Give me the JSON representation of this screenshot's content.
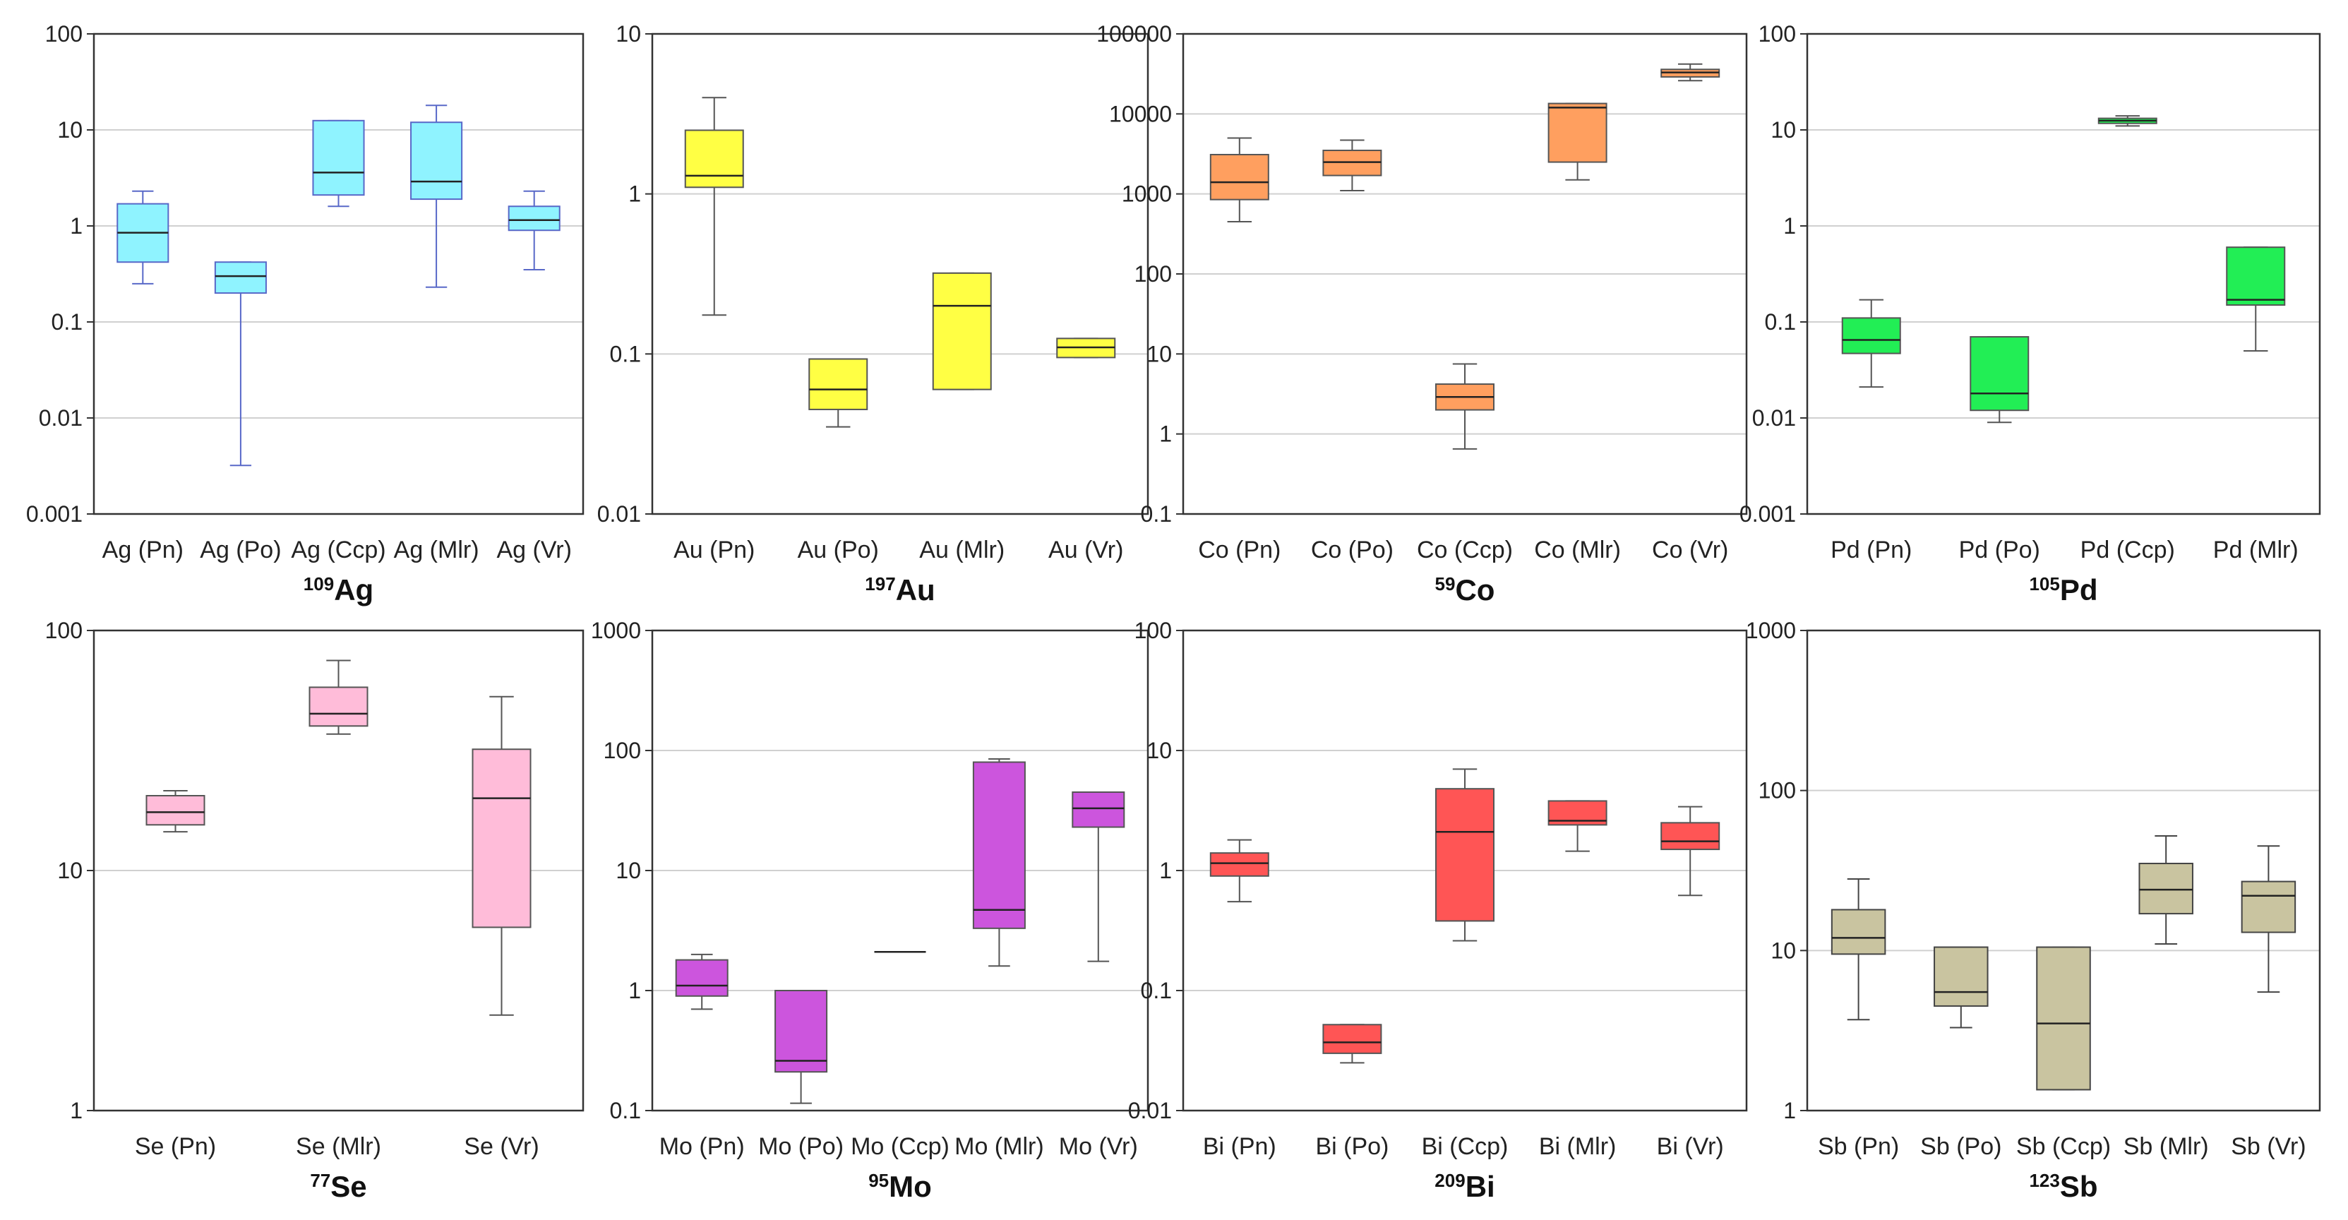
{
  "chart_data": [
    {
      "type": "box",
      "element": "Ag",
      "isotope": "109",
      "title_text": "Ag",
      "title_superscript": "109",
      "yscale": "log",
      "ylim": [
        0.001,
        100
      ],
      "ytick_labels": [
        "0.001",
        "0.01",
        "0.1",
        "1",
        "10",
        "100"
      ],
      "fill": "#8ff3ff",
      "stroke": "#5868c8",
      "categories": [
        "Ag (Pn)",
        "Ag (Po)",
        "Ag (Ccp)",
        "Ag (Mlr)",
        "Ag (Vr)"
      ],
      "boxes": [
        {
          "min": 0.25,
          "q1": 0.42,
          "median": 0.85,
          "q3": 1.7,
          "max": 2.3
        },
        {
          "min": 0.0032,
          "q1": 0.2,
          "median": 0.3,
          "q3": 0.42,
          "max": 0.42
        },
        {
          "min": 1.6,
          "q1": 2.1,
          "median": 3.6,
          "q3": 12.5,
          "max": 12.5
        },
        {
          "min": 0.23,
          "q1": 1.9,
          "median": 2.9,
          "q3": 12,
          "max": 18
        },
        {
          "min": 0.35,
          "q1": 0.9,
          "median": 1.15,
          "q3": 1.6,
          "max": 2.3
        }
      ]
    },
    {
      "type": "box",
      "element": "Au",
      "isotope": "197",
      "title_text": "Au",
      "title_superscript": "197",
      "yscale": "log",
      "ylim": [
        0.01,
        10
      ],
      "ytick_labels": [
        "0.01",
        "0.1",
        "1",
        "10"
      ],
      "fill": "#ffff44",
      "stroke": "#555555",
      "categories": [
        "Au (Pn)",
        "Au (Po)",
        "Au (Mlr)",
        "Au (Vr)"
      ],
      "boxes": [
        {
          "min": 0.175,
          "q1": 1.1,
          "median": 1.3,
          "q3": 2.5,
          "max": 4.0
        },
        {
          "min": 0.035,
          "q1": 0.045,
          "median": 0.06,
          "q3": 0.093,
          "max": 0.093
        },
        {
          "min": 0.06,
          "q1": 0.06,
          "median": 0.2,
          "q3": 0.32,
          "max": 0.32
        },
        {
          "min": 0.095,
          "q1": 0.095,
          "median": 0.11,
          "q3": 0.125,
          "max": 0.125
        }
      ]
    },
    {
      "type": "box",
      "element": "Co",
      "isotope": "59",
      "title_text": "Co",
      "title_superscript": "59",
      "yscale": "log",
      "ylim": [
        0.1,
        100000
      ],
      "ytick_labels": [
        "0.1",
        "1",
        "10",
        "100",
        "1000",
        "10000",
        "100000"
      ],
      "fill": "#ff9f5f",
      "stroke": "#555555",
      "categories": [
        "Co (Pn)",
        "Co (Po)",
        "Co (Ccp)",
        "Co (Mlr)",
        "Co (Vr)"
      ],
      "boxes": [
        {
          "min": 450,
          "q1": 850,
          "median": 1400,
          "q3": 3100,
          "max": 5000
        },
        {
          "min": 1100,
          "q1": 1700,
          "median": 2500,
          "q3": 3500,
          "max": 4700
        },
        {
          "min": 0.65,
          "q1": 2.0,
          "median": 2.9,
          "q3": 4.2,
          "max": 7.5
        },
        {
          "min": 1500,
          "q1": 2500,
          "median": 12000,
          "q3": 13500,
          "max": 13500
        },
        {
          "min": 26000,
          "q1": 29000,
          "median": 33000,
          "q3": 36000,
          "max": 42000
        }
      ]
    },
    {
      "type": "box",
      "element": "Pd",
      "isotope": "105",
      "title_text": "Pd",
      "title_superscript": "105",
      "yscale": "log",
      "ylim": [
        0.001,
        100
      ],
      "ytick_labels": [
        "0.001",
        "0.01",
        "0.1",
        "1",
        "10",
        "100"
      ],
      "fill": "#22ee55",
      "stroke": "#555555",
      "categories": [
        "Pd (Pn)",
        "Pd (Po)",
        "Pd (Ccp)",
        "Pd (Mlr)"
      ],
      "boxes": [
        {
          "min": 0.021,
          "q1": 0.047,
          "median": 0.065,
          "q3": 0.11,
          "max": 0.17
        },
        {
          "min": 0.009,
          "q1": 0.012,
          "median": 0.018,
          "q3": 0.07,
          "max": 0.07
        },
        {
          "min": 11,
          "q1": 11.7,
          "median": 12.5,
          "q3": 13.2,
          "max": 14
        },
        {
          "min": 0.05,
          "q1": 0.15,
          "median": 0.17,
          "q3": 0.6,
          "max": 0.6
        }
      ]
    },
    {
      "type": "box",
      "element": "Se",
      "isotope": "77",
      "title_text": "Se",
      "title_superscript": "77",
      "yscale": "log",
      "ylim": [
        1,
        100
      ],
      "ytick_labels": [
        "1",
        "10",
        "100"
      ],
      "fill": "#ffbcd9",
      "stroke": "#555555",
      "categories": [
        "Se (Pn)",
        "Se (Mlr)",
        "Se (Vr)"
      ],
      "boxes": [
        {
          "min": 14.5,
          "q1": 15.5,
          "median": 17.5,
          "q3": 20.5,
          "max": 21.5
        },
        {
          "min": 37,
          "q1": 40,
          "median": 45,
          "q3": 58,
          "max": 75
        },
        {
          "min": 2.5,
          "q1": 5.8,
          "median": 20,
          "q3": 32,
          "max": 53
        }
      ]
    },
    {
      "type": "box",
      "element": "Mo",
      "isotope": "95",
      "title_text": "Mo",
      "title_superscript": "95",
      "yscale": "log",
      "ylim": [
        0.1,
        1000
      ],
      "ytick_labels": [
        "0.1",
        "1",
        "10",
        "100",
        "1000"
      ],
      "fill": "#cc55dd",
      "stroke": "#555555",
      "categories": [
        "Mo (Pn)",
        "Mo (Po)",
        "Mo (Ccp)",
        "Mo (Mlr)",
        "Mo (Vr)"
      ],
      "boxes": [
        {
          "min": 0.7,
          "q1": 0.9,
          "median": 1.1,
          "q3": 1.8,
          "max": 2.0
        },
        {
          "min": 0.115,
          "q1": 0.21,
          "median": 0.26,
          "q3": 1.0,
          "max": 1.0
        },
        {
          "min": 2.1,
          "q1": 2.1,
          "median": 2.1,
          "q3": 2.1,
          "max": 2.1
        },
        {
          "min": 1.6,
          "q1": 3.3,
          "median": 4.7,
          "q3": 80,
          "max": 85
        },
        {
          "min": 1.75,
          "q1": 23,
          "median": 33,
          "q3": 45,
          "max": 45
        }
      ]
    },
    {
      "type": "box",
      "element": "Bi",
      "isotope": "209",
      "title_text": "Bi",
      "title_superscript": "209",
      "yscale": "log",
      "ylim": [
        0.01,
        100
      ],
      "ytick_labels": [
        "0.01",
        "0.1",
        "1",
        "10",
        "100"
      ],
      "fill": "#ff5555",
      "stroke": "#555555",
      "categories": [
        "Bi (Pn)",
        "Bi (Po)",
        "Bi (Ccp)",
        "Bi (Mlr)",
        "Bi (Vr)"
      ],
      "boxes": [
        {
          "min": 0.55,
          "q1": 0.9,
          "median": 1.15,
          "q3": 1.4,
          "max": 1.8
        },
        {
          "min": 0.025,
          "q1": 0.03,
          "median": 0.037,
          "q3": 0.052,
          "max": 0.052
        },
        {
          "min": 0.26,
          "q1": 0.38,
          "median": 2.1,
          "q3": 4.8,
          "max": 7.0
        },
        {
          "min": 1.45,
          "q1": 2.4,
          "median": 2.6,
          "q3": 3.8,
          "max": 3.8
        },
        {
          "min": 0.62,
          "q1": 1.5,
          "median": 1.75,
          "q3": 2.5,
          "max": 3.4
        }
      ]
    },
    {
      "type": "box",
      "element": "Sb",
      "isotope": "123",
      "title_text": "Sb",
      "title_superscript": "123",
      "yscale": "log",
      "ylim": [
        1,
        1000
      ],
      "ytick_labels": [
        "1",
        "10",
        "100",
        "1000"
      ],
      "fill": "#c9c4a0",
      "stroke": "#444444",
      "categories": [
        "Sb (Pn)",
        "Sb (Po)",
        "Sb (Ccp)",
        "Sb (Mlr)",
        "Sb (Vr)"
      ],
      "boxes": [
        {
          "min": 3.7,
          "q1": 9.5,
          "median": 12,
          "q3": 18,
          "max": 28
        },
        {
          "min": 3.3,
          "q1": 4.5,
          "median": 5.5,
          "q3": 10.5,
          "max": 10.5
        },
        {
          "min": 1.35,
          "q1": 1.35,
          "median": 3.5,
          "q3": 10.5,
          "max": 10.5
        },
        {
          "min": 11,
          "q1": 17,
          "median": 24,
          "q3": 35,
          "max": 52
        },
        {
          "min": 5.5,
          "q1": 13,
          "median": 22,
          "q3": 27,
          "max": 45
        }
      ]
    }
  ]
}
